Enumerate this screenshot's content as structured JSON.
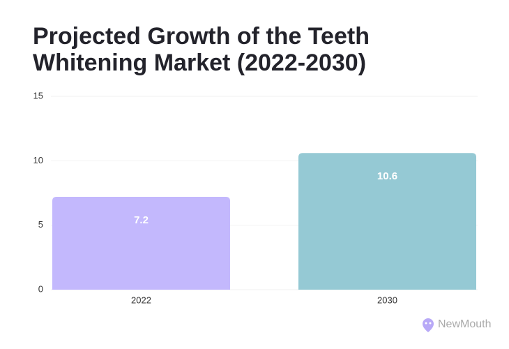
{
  "chart_data": {
    "type": "bar",
    "title": [
      "Projected Growth of the Teeth",
      "Whitening Market (2022-2030)"
    ],
    "categories": [
      "2022",
      "2030"
    ],
    "values": [
      7.2,
      10.6
    ],
    "colors": [
      "#c3b8fd",
      "#95c9d4"
    ],
    "ylim": [
      0,
      15
    ],
    "yticks": [
      0,
      5,
      10,
      15
    ],
    "grid": true,
    "brand": "NewMouth"
  }
}
